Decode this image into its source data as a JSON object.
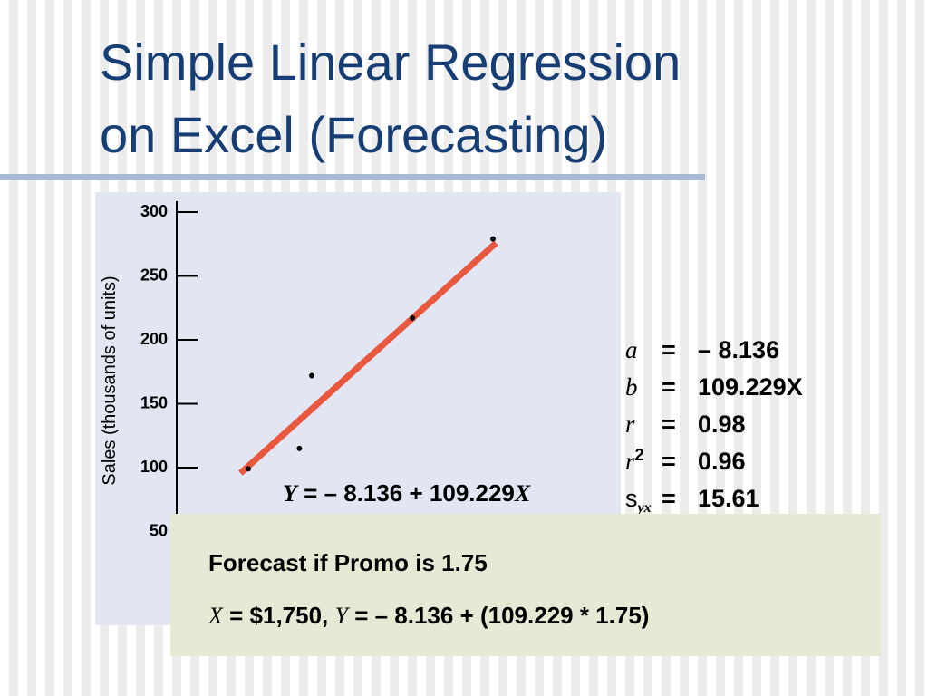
{
  "slide": {
    "title_lines": [
      "Simple Linear Regression",
      "on Excel (Forecasting)"
    ],
    "stats": [
      {
        "symbol": "a",
        "value": "– 8.136"
      },
      {
        "symbol": "b",
        "value": "109.229X"
      },
      {
        "symbol": "r",
        "value": "0.98"
      },
      {
        "symbol": "r",
        "sup": "2",
        "value": "0.96"
      },
      {
        "symbol": "s",
        "sub": "yx",
        "value": "15.61"
      }
    ],
    "equals": "=",
    "forecast": {
      "heading": "Forecast if Promo is 1.75",
      "line": [
        "X",
        " = $1,750, ",
        "Y",
        " = – 8.136 + (109.229 * 1.75)"
      ]
    }
  },
  "chart_data": {
    "type": "scatter",
    "y_label": "Sales (thousands of units)",
    "equation": [
      "Y",
      " = – 8.136 + 109.229",
      "X"
    ],
    "x": [
      1.0,
      1.33,
      1.41,
      2.06,
      2.58
    ],
    "values": [
      99,
      115,
      172,
      217,
      279
    ],
    "color": "#000000",
    "xlim": [
      0.5,
      3.2
    ],
    "ylim": [
      0,
      300
    ],
    "yticks": [
      50,
      100,
      150,
      200,
      250,
      300
    ],
    "fit": {
      "intercept": -8.136,
      "slope": 109.229,
      "x": [
        0.95,
        2.6
      ],
      "color": "#e8583e"
    }
  }
}
